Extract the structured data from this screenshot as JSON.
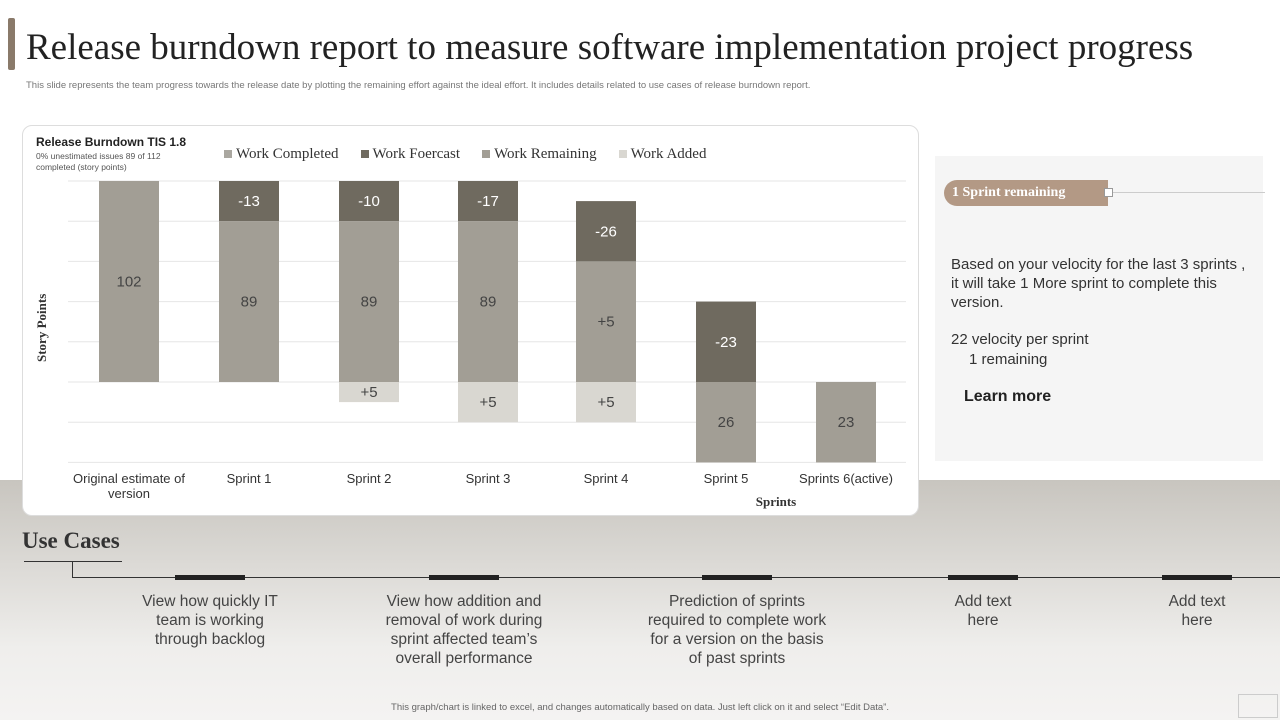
{
  "header": {
    "title": "Release burndown report to measure software implementation project progress",
    "subtitle": "This slide represents the team progress towards the release date by plotting the remaining effort against the ideal effort. It includes details related to use cases of release burndown report."
  },
  "chart_data": {
    "type": "bar",
    "stacked": true,
    "title": "Release Burndown TIS 1.8",
    "subtitle_lines": [
      "0%  unestimated issues 89 of 112",
      "completed (story points)"
    ],
    "xlabel": "Sprints",
    "ylabel": "Story Points",
    "ylim": [
      -40,
      100
    ],
    "grid": true,
    "legend_position": "top",
    "categories": [
      "Original estimate of version",
      "Sprint 1",
      "Sprint 2",
      "Sprint 3",
      "Sprint 4",
      "Sprint 5",
      "Sprints 6(active)"
    ],
    "series": [
      {
        "name": "Work Completed",
        "color": "#a29e95",
        "segments": [
          {
            "cat": 0,
            "from": 0,
            "to": 100,
            "label": "102"
          }
        ]
      },
      {
        "name": "Work Foercast",
        "color": "#6f6a5f",
        "segments": [
          {
            "cat": 1,
            "from": 80,
            "to": 100,
            "label": "-13"
          },
          {
            "cat": 2,
            "from": 80,
            "to": 100,
            "label": "-10"
          },
          {
            "cat": 3,
            "from": 80,
            "to": 100,
            "label": "-17"
          },
          {
            "cat": 4,
            "from": 60,
            "to": 90,
            "label": "-26"
          },
          {
            "cat": 5,
            "from": 0,
            "to": 40,
            "label": "-23"
          }
        ]
      },
      {
        "name": "Work Remaining",
        "color": "#a29e95",
        "segments": [
          {
            "cat": 1,
            "from": 0,
            "to": 80,
            "label": "89"
          },
          {
            "cat": 2,
            "from": 0,
            "to": 80,
            "label": "89"
          },
          {
            "cat": 3,
            "from": 0,
            "to": 80,
            "label": "89"
          },
          {
            "cat": 4,
            "from": 0,
            "to": 60,
            "label": "+5"
          },
          {
            "cat": 5,
            "from": -40,
            "to": 0,
            "label": "26"
          },
          {
            "cat": 6,
            "from": -40,
            "to": 0,
            "label": "23"
          }
        ]
      },
      {
        "name": "Work Added",
        "color": "#d9d7d1",
        "segments": [
          {
            "cat": 2,
            "from": -10,
            "to": 0,
            "label": "+5"
          },
          {
            "cat": 3,
            "from": -20,
            "to": 0,
            "label": "+5"
          },
          {
            "cat": 4,
            "from": -20,
            "to": 0,
            "label": "+5"
          }
        ]
      }
    ]
  },
  "panel": {
    "badge": "1 Sprint  remaining",
    "text": "Based on your velocity for the last 3 sprints , it will take 1 More sprint to complete this version.",
    "velocity": "22 velocity per sprint",
    "remaining": "1 remaining",
    "link": "Learn more"
  },
  "use_cases": {
    "title": "Use Cases",
    "items": [
      "View how quickly IT team is working through backlog",
      "View how addition and removal of work during sprint affected team’s overall performance",
      "Prediction of sprints required to complete work for a version on the basis of past sprints",
      "Add text here",
      "Add text here"
    ]
  },
  "footer": "This graph/chart is linked to excel, and changes automatically based on data. Just left click on it and select “Edit Data”."
}
